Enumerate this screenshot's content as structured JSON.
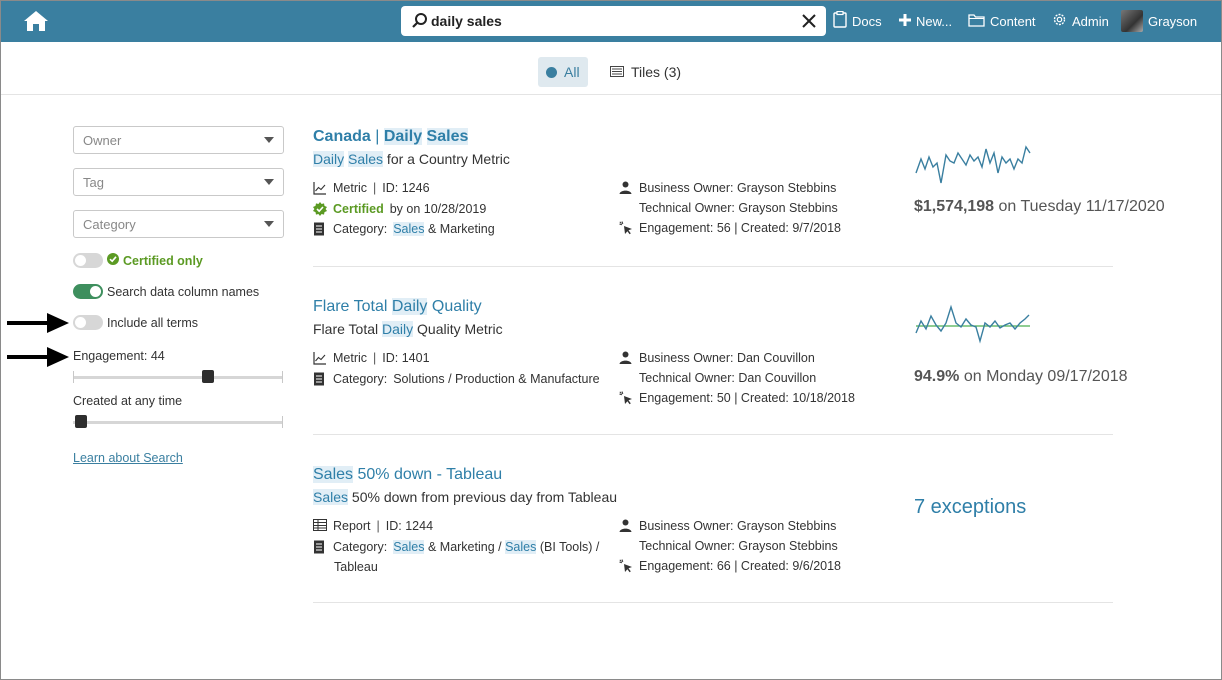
{
  "topbar": {
    "search_value": "daily sales",
    "nav": {
      "docs": "Docs",
      "new": "New...",
      "content": "Content",
      "admin": "Admin",
      "user": "Grayson"
    }
  },
  "filter_tabs": {
    "all": "All",
    "tiles": "Tiles (3)"
  },
  "sidebar": {
    "owner_placeholder": "Owner",
    "tag_placeholder": "Tag",
    "category_placeholder": "Category",
    "certified_only": "Certified only",
    "search_columns": "Search data column names",
    "include_all_terms": "Include all terms",
    "engagement_label": "Engagement: 44",
    "engagement_value": 44,
    "created_label": "Created at any time",
    "learn_link": "Learn about Search",
    "toggles": {
      "certified_only": false,
      "search_columns": true,
      "include_all_terms": false
    }
  },
  "results": [
    {
      "title_a": "Canada",
      "title_sep": " | ",
      "title_b": "Daily",
      "title_c": " ",
      "title_d": "Sales",
      "sub_a": "Daily",
      "sub_b": " ",
      "sub_c": "Sales",
      "sub_d": " for a Country Metric",
      "type": "Metric",
      "id": "ID: 1246",
      "certified": "Certified",
      "certified_rest": "by on 10/28/2019",
      "category_label": "Category:",
      "category_a": "Sales",
      "category_b": "& Marketing",
      "business_owner": "Business Owner: Grayson Stebbins",
      "technical_owner": "Technical Owner: Grayson Stebbins",
      "engagement": "Engagement: 56 | Created: 9/7/2018",
      "value_bold": "$1,574,198",
      "value_rest": " on Tuesday 11/17/2020"
    },
    {
      "title_a": "Flare Total ",
      "title_b": "Daily",
      "title_c": " Quality",
      "sub_a": "Flare Total ",
      "sub_b": "Daily",
      "sub_c": " Quality Metric",
      "type": "Metric",
      "id": "ID: 1401",
      "category_label": "Category:",
      "category_a": "Solutions / Production & Manufacture",
      "business_owner": "Business Owner: Dan Couvillon",
      "technical_owner": "Technical Owner: Dan Couvillon",
      "engagement": "Engagement: 50 | Created: 10/18/2018",
      "value_bold": "94.9%",
      "value_rest": " on Monday 09/17/2018"
    },
    {
      "title_a": "Sales",
      "title_b": " 50% down - Tableau",
      "sub_a": "Sales",
      "sub_b": " 50% down from previous day from Tableau",
      "type": "Report",
      "id": "ID: 1244",
      "category_label": "Category:",
      "category_a": "Sales",
      "category_b": "& Marketing /",
      "category_c": "Sales",
      "category_d": "(BI Tools) /",
      "category_e": "Tableau",
      "business_owner": "Business Owner: Grayson Stebbins",
      "technical_owner": "Technical Owner: Grayson Stebbins",
      "engagement": "Engagement: 66 | Created: 9/6/2018",
      "exceptions": "7 exceptions"
    }
  ],
  "icons": [
    "home-icon",
    "search-icon",
    "close-icon",
    "docs-icon",
    "plus-icon",
    "folder-icon",
    "gear-icon",
    "avatar",
    "tiles-icon",
    "metric-icon",
    "report-icon",
    "certified-icon",
    "category-icon",
    "person-icon",
    "click-icon",
    "arrow-icon",
    "sparkline"
  ],
  "colors": {
    "topbar": "#3a7fa0",
    "link": "#2f7fa8",
    "certified": "#5b9a23",
    "toggle_on": "#3e8f5e",
    "highlight": "#e1eef6"
  }
}
